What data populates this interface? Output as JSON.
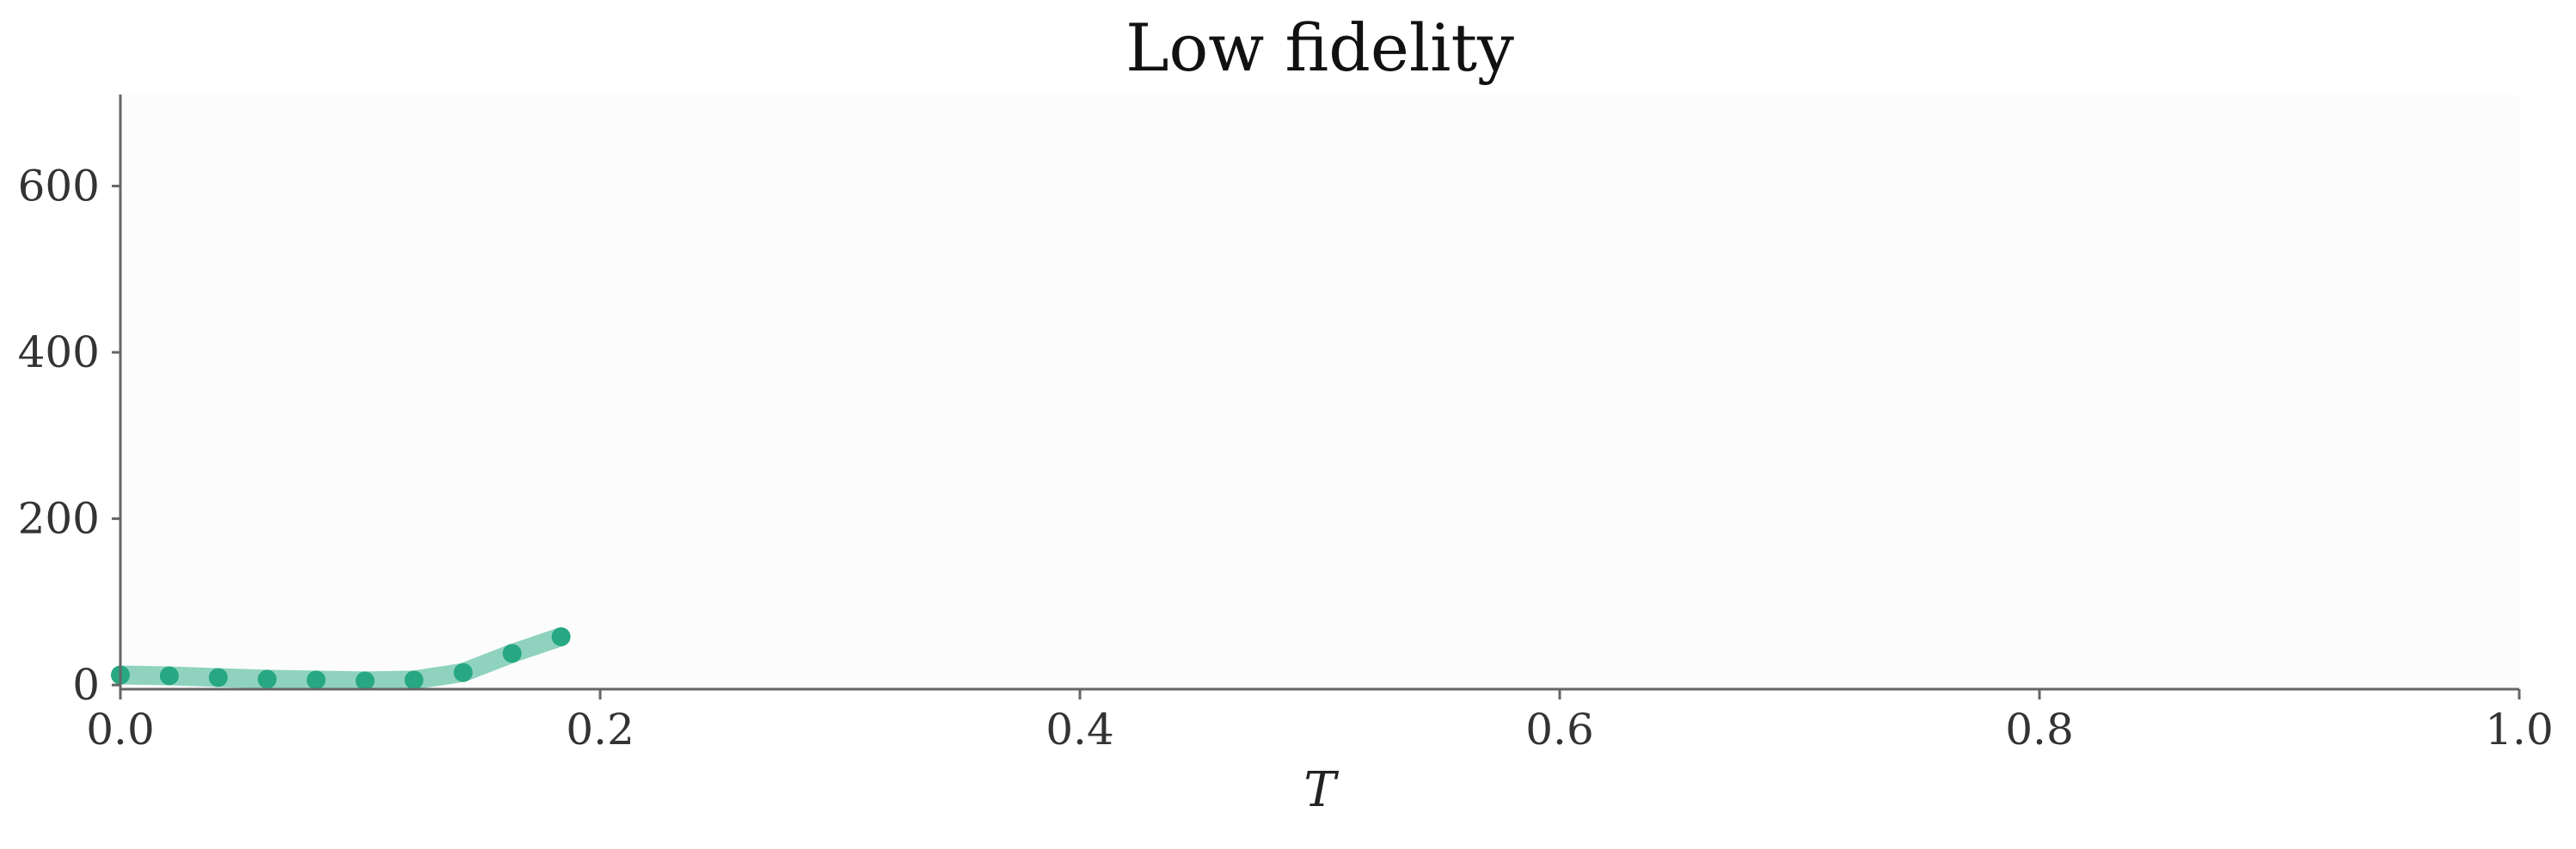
{
  "chart_data": {
    "type": "line",
    "title": "Low fidelity",
    "xlabel": "T",
    "ylabel": "",
    "xlim": [
      0.0,
      1.0
    ],
    "ylim": [
      -5,
      710
    ],
    "grid": false,
    "legend": "none",
    "x_ticks": [
      0.0,
      0.2,
      0.4,
      0.6,
      0.8,
      1.0
    ],
    "x_tick_labels": [
      "0.0",
      "0.2",
      "0.4",
      "0.6",
      "0.8",
      "1.0"
    ],
    "y_ticks": [
      0,
      200,
      400,
      600
    ],
    "y_tick_labels": [
      "0",
      "200",
      "400",
      "600"
    ],
    "colors": {
      "plot_background": "#fcfcfc",
      "axis": "#666666",
      "line": "#8fd3bf",
      "marker": "#27a882"
    },
    "series": [
      {
        "x": [
          0.0,
          0.0204,
          0.0408,
          0.0612,
          0.0816,
          0.102,
          0.1224,
          0.1429,
          0.1633,
          0.1837
        ],
        "y": [
          12,
          11,
          9,
          7,
          6,
          5,
          6,
          15,
          38,
          58
        ]
      }
    ]
  }
}
